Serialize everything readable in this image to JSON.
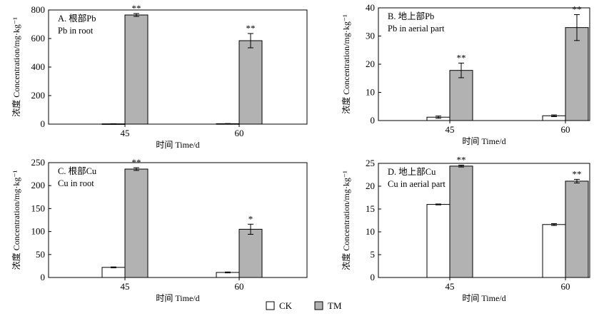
{
  "chart_data": [
    {
      "type": "bar",
      "panel_title": "A. 根部Pb",
      "panel_subtitle": "Pb in root",
      "xlabel": "时间 Time/d",
      "ylabel": "浓度 Concentration/mg·kg⁻¹",
      "ylim": [
        0,
        800
      ],
      "yticks": [
        0,
        200,
        400,
        600,
        800
      ],
      "categories": [
        "45",
        "60"
      ],
      "series": [
        {
          "name": "CK",
          "values": [
            2,
            3
          ],
          "errors": [
            1,
            1
          ],
          "marks": [
            "",
            ""
          ]
        },
        {
          "name": "TM",
          "values": [
            765,
            585
          ],
          "errors": [
            10,
            50
          ],
          "marks": [
            "**",
            "**"
          ]
        }
      ]
    },
    {
      "type": "bar",
      "panel_title": "B. 地上部Pb",
      "panel_subtitle": "Pb in aerial part",
      "xlabel": "时间 Time/d",
      "ylabel": "浓度 Concentration/mg·kg⁻¹",
      "ylim": [
        0,
        40
      ],
      "yticks": [
        0,
        10,
        20,
        30,
        40
      ],
      "categories": [
        "45",
        "60"
      ],
      "series": [
        {
          "name": "CK",
          "values": [
            1.2,
            1.7
          ],
          "errors": [
            0.4,
            0.3
          ],
          "marks": [
            "",
            ""
          ]
        },
        {
          "name": "TM",
          "values": [
            17.8,
            33
          ],
          "errors": [
            2.6,
            4.6
          ],
          "marks": [
            "**",
            "**"
          ]
        }
      ]
    },
    {
      "type": "bar",
      "panel_title": "C. 根部Cu",
      "panel_subtitle": "Cu in root",
      "xlabel": "时间 Time/d",
      "ylabel": "浓度 Concentration/mg·kg⁻¹",
      "ylim": [
        0,
        250
      ],
      "yticks": [
        0,
        50,
        100,
        150,
        200,
        250
      ],
      "categories": [
        "45",
        "60"
      ],
      "series": [
        {
          "name": "CK",
          "values": [
            22,
            11
          ],
          "errors": [
            1,
            1
          ],
          "marks": [
            "",
            ""
          ]
        },
        {
          "name": "TM",
          "values": [
            236,
            105
          ],
          "errors": [
            3,
            11
          ],
          "marks": [
            "**",
            "*"
          ]
        }
      ]
    },
    {
      "type": "bar",
      "panel_title": "D. 地上部Cu",
      "panel_subtitle": "Cu in aerial part",
      "xlabel": "时间 Time/d",
      "ylabel": "浓度 Concentration/mg·kg⁻¹",
      "ylim": [
        0,
        25
      ],
      "yticks": [
        0,
        5,
        10,
        15,
        20,
        25
      ],
      "categories": [
        "45",
        "60"
      ],
      "series": [
        {
          "name": "CK",
          "values": [
            16,
            11.6
          ],
          "errors": [
            0.1,
            0.2
          ],
          "marks": [
            "",
            ""
          ]
        },
        {
          "name": "TM",
          "values": [
            24.4,
            21.1
          ],
          "errors": [
            0.2,
            0.4
          ],
          "marks": [
            "**",
            "**"
          ]
        }
      ]
    }
  ],
  "legend": {
    "items": [
      {
        "label": "CK",
        "color": "#ffffff"
      },
      {
        "label": "TM",
        "color": "#b2b2b2"
      }
    ]
  },
  "colors": {
    "CK": "#ffffff",
    "TM": "#b2b2b2",
    "axis": "#000000"
  }
}
